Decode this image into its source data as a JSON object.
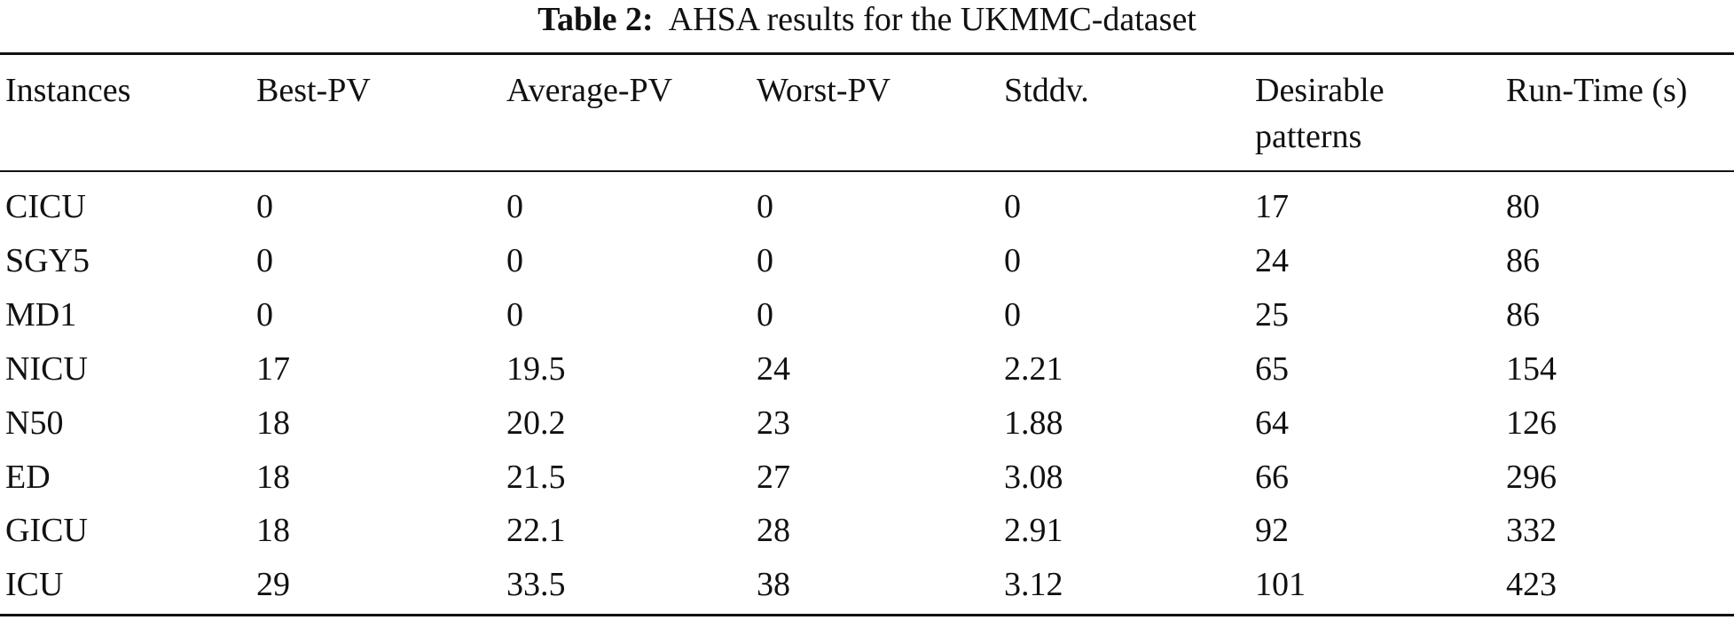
{
  "caption": {
    "label": "Table 2:",
    "text": "AHSA results for the UKMMC-dataset"
  },
  "table": {
    "header": [
      "Instances",
      "Best-PV",
      "Average-PV",
      "Worst-PV",
      "Stddv.",
      "Desirable patterns",
      "Run-Time (s)"
    ],
    "rows": [
      [
        "CICU",
        0,
        0,
        0,
        0,
        17,
        80
      ],
      [
        "SGY5",
        0,
        0,
        0,
        0,
        24,
        86
      ],
      [
        "MD1",
        0,
        0,
        0,
        0,
        25,
        86
      ],
      [
        "NICU",
        17,
        19.5,
        24,
        2.21,
        65,
        154
      ],
      [
        "N50",
        18,
        20.2,
        23,
        1.88,
        64,
        126
      ],
      [
        "ED",
        18,
        21.5,
        27,
        3.08,
        66,
        296
      ],
      [
        "GICU",
        18,
        22.1,
        28,
        2.91,
        92,
        332
      ],
      [
        "ICU",
        29,
        33.5,
        38,
        3.12,
        101,
        423
      ]
    ]
  }
}
